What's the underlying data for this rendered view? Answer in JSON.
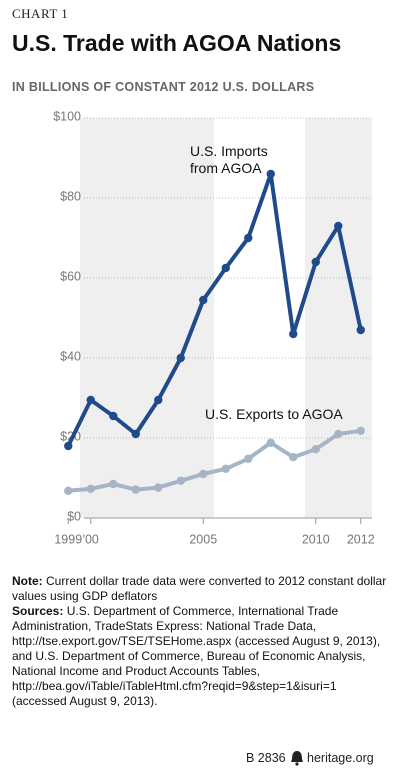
{
  "chart_data": {
    "type": "line",
    "kicker": "CHART 1",
    "title": "U.S. Trade with AGOA Nations",
    "subtitle": "IN BILLIONS OF CONSTANT 2012 U.S. DOLLARS",
    "x": [
      1999,
      2000,
      2001,
      2002,
      2003,
      2004,
      2005,
      2006,
      2007,
      2008,
      2009,
      2010,
      2011,
      2012
    ],
    "series": [
      {
        "name": "U.S. Imports from AGOA",
        "color": "#1f4b8a",
        "values": [
          18,
          29.5,
          25.5,
          21,
          29.5,
          40,
          54.5,
          62.5,
          70,
          86,
          46,
          64,
          73,
          47
        ]
      },
      {
        "name": "U.S. Exports to AGOA",
        "color": "#a6b5c6",
        "values": [
          6.8,
          7.3,
          8.5,
          7.1,
          7.6,
          9.3,
          11,
          12.3,
          14.8,
          18.8,
          15.2,
          17.2,
          21,
          21.8
        ]
      }
    ],
    "xlim": [
      1998.5,
      2012.5
    ],
    "xticks": [
      1999,
      {
        "value": 2000,
        "label": "'00"
      },
      2005,
      2010,
      2012
    ],
    "ylim": [
      0,
      100
    ],
    "yticks": [
      {
        "value": 0,
        "label": "$0"
      },
      {
        "value": 20,
        "label": "$20"
      },
      {
        "value": 40,
        "label": "$40"
      },
      {
        "value": 60,
        "label": "$60"
      },
      {
        "value": 80,
        "label": "$80"
      },
      {
        "value": 100,
        "label": "$100"
      }
    ],
    "grid": true
  },
  "notes": {
    "note_label": "Note:",
    "note": "Current dollar trade data were converted to 2012 constant dollar values using GDP deflators",
    "sources_label": "Sources:",
    "sources": "U.S. Department of Commerce, International Trade Administration, TradeStats Express: National Trade Data, http://tse.export.gov/TSE/TSEHome.aspx (accessed August 9, 2013), and U.S. Department of Commerce, Bureau of Economic Analysis, National Income and Product Accounts Tables, http://bea.gov/iTable/iTableHtml.cfm?reqid=9&step=1&isuri=1 (accessed August 9, 2013)."
  },
  "footer": {
    "report": "B 2836",
    "site": "heritage.org"
  }
}
